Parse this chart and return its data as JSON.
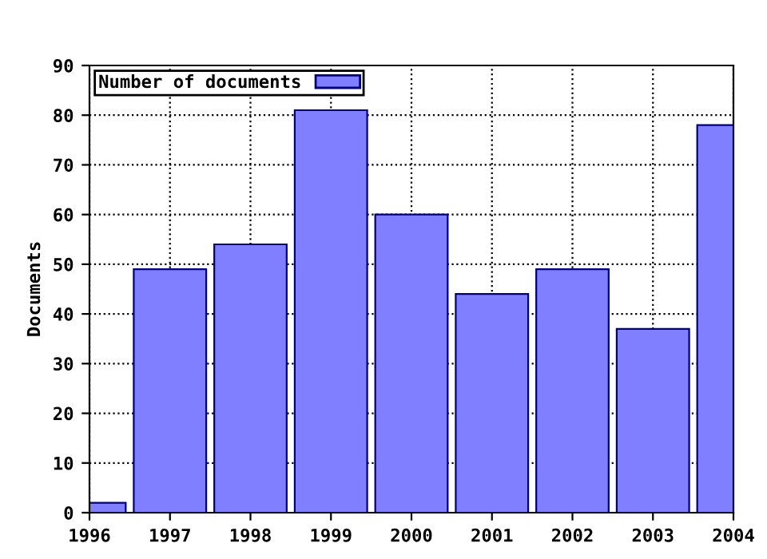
{
  "chart_data": {
    "type": "bar",
    "ylabel": "Documents",
    "x": [
      1996,
      1997,
      1998,
      1999,
      2000,
      2001,
      2002,
      2003,
      2004
    ],
    "series": [
      {
        "name": "Number of documents",
        "color": "#7f7fff",
        "values": [
          2,
          49,
          54,
          81,
          60,
          44,
          49,
          37,
          78
        ]
      }
    ],
    "xlim": [
      1996,
      2004
    ],
    "xticks": [
      1996,
      1997,
      1998,
      1999,
      2000,
      2001,
      2002,
      2003,
      2004
    ],
    "ylim": [
      0,
      90
    ],
    "yticks": [
      0,
      10,
      20,
      30,
      40,
      50,
      60,
      70,
      80,
      90
    ],
    "grid": true,
    "legend": "top left"
  }
}
